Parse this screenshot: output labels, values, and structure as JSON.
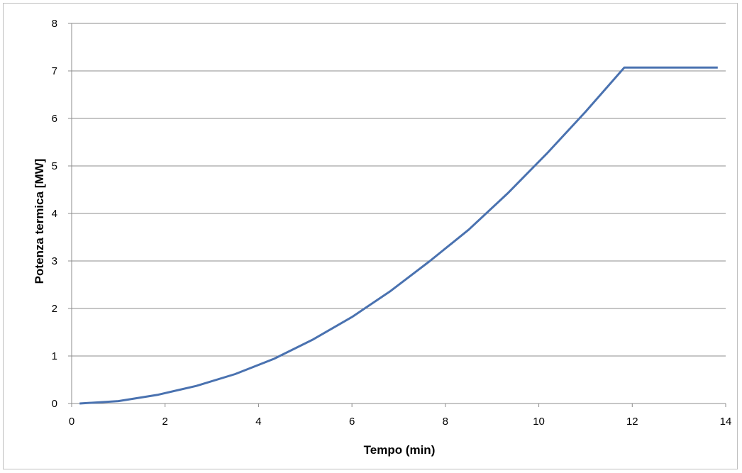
{
  "chart_data": {
    "type": "line",
    "title": "",
    "xlabel": "Tempo (min)",
    "ylabel": "Potenza termica [MW]",
    "xlim": [
      0,
      14
    ],
    "ylim": [
      0,
      8
    ],
    "xticks": [
      0,
      2,
      4,
      6,
      8,
      10,
      12,
      14
    ],
    "yticks": [
      0,
      1,
      2,
      3,
      4,
      5,
      6,
      7,
      8
    ],
    "grid": "horizontal",
    "legend": "none",
    "series": [
      {
        "color": "#4a72b0",
        "x": [
          0.17,
          1.0,
          1.83,
          2.67,
          3.5,
          4.33,
          5.17,
          6.0,
          6.83,
          7.67,
          8.5,
          9.33,
          10.17,
          11.0,
          11.83,
          13.83
        ],
        "y": [
          0.0,
          0.05,
          0.18,
          0.37,
          0.62,
          0.94,
          1.35,
          1.82,
          2.37,
          3.0,
          3.66,
          4.42,
          5.26,
          6.14,
          7.07,
          7.07
        ]
      }
    ]
  }
}
